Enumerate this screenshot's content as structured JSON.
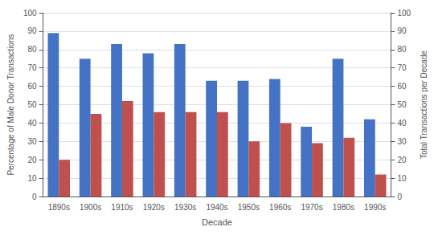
{
  "chart_data": {
    "type": "bar",
    "xlabel": "Decade",
    "ylabel": "Percentage of Male Donor Transactions",
    "y2label": "Total Transactions per Decade",
    "categories": [
      "1890s",
      "1900s",
      "1910s",
      "1920s",
      "1930s",
      "1940s",
      "1950s",
      "1960s",
      "1970s",
      "1980s",
      "1990s"
    ],
    "series": [
      {
        "color": "#4472C4",
        "values": [
          89,
          75,
          83,
          78,
          83,
          63,
          63,
          64,
          38,
          75,
          42
        ]
      },
      {
        "color": "#C0504D",
        "values": [
          20,
          45,
          52,
          46,
          46,
          46,
          30,
          40,
          29,
          32,
          12
        ]
      }
    ],
    "ylim": [
      0,
      100
    ],
    "yticks": [
      0,
      10,
      20,
      30,
      40,
      50,
      60,
      70,
      80,
      90,
      100
    ],
    "y2lim": [
      0,
      100
    ],
    "y2ticks": [
      0,
      10,
      20,
      30,
      40,
      50,
      60,
      70,
      80,
      90,
      100
    ],
    "grid": true
  }
}
